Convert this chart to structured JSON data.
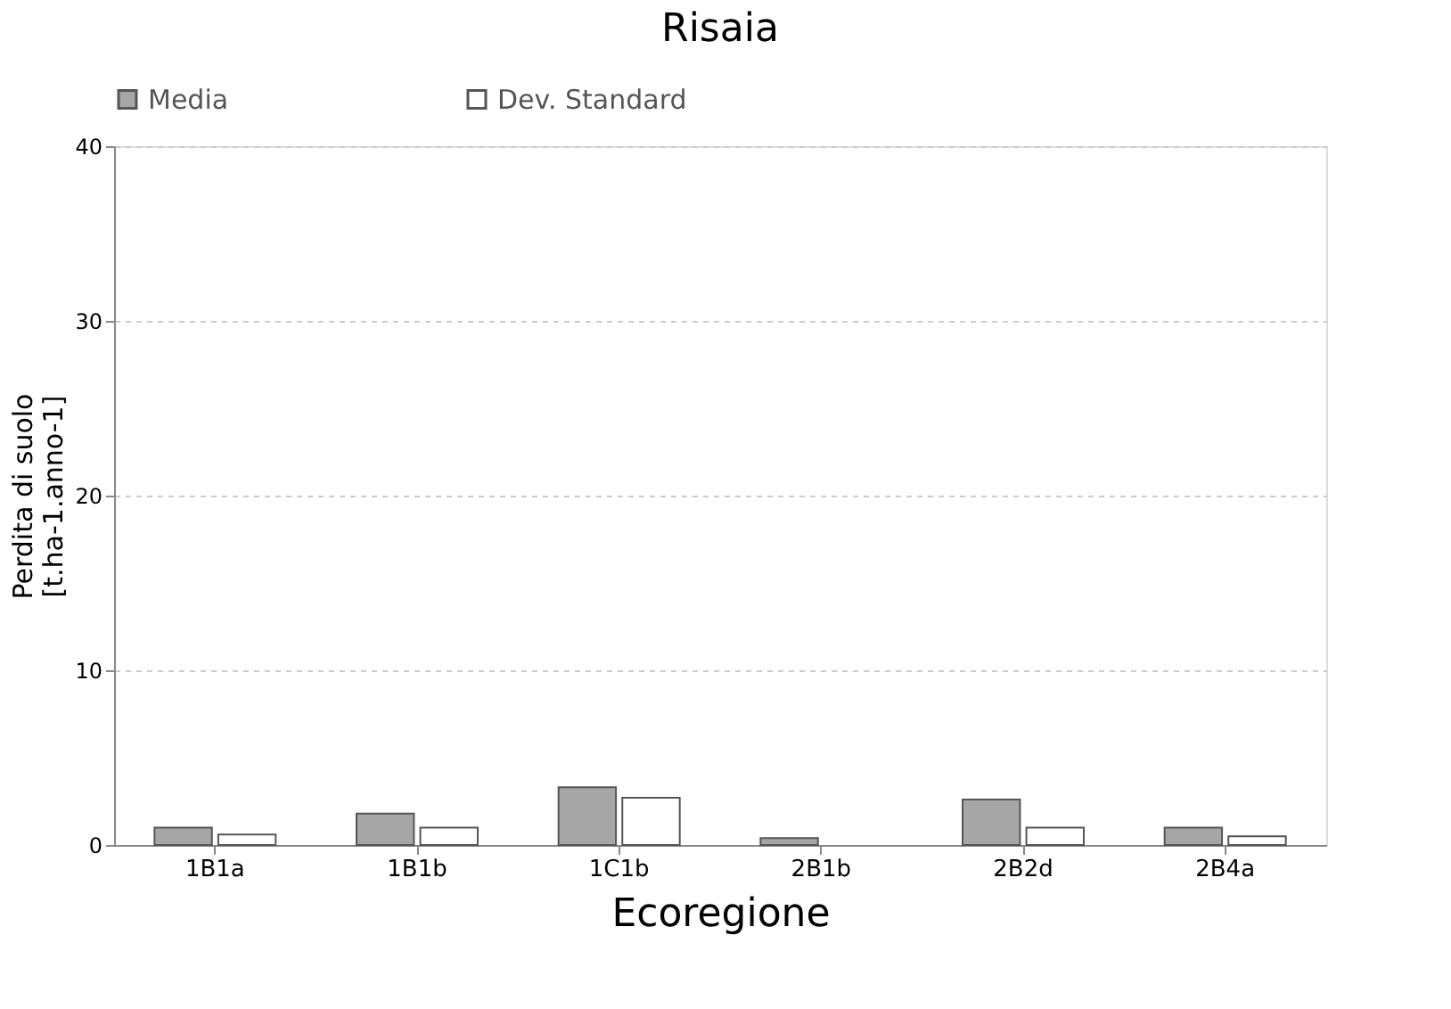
{
  "chart_data": {
    "type": "bar",
    "title": "Risaia",
    "xlabel": "Ecoregione",
    "ylabel": "Perdita di suolo\n[t.ha-1.anno-1]",
    "categories": [
      "1B1a",
      "1B1b",
      "1C1b",
      "2B1b",
      "2B2d",
      "2B4a"
    ],
    "series": [
      {
        "name": "Media",
        "color": "#a6a6a6",
        "values": [
          1.0,
          1.8,
          3.3,
          0.4,
          2.6,
          1.0
        ]
      },
      {
        "name": "Dev. Standard",
        "color": "#ffffff",
        "values": [
          0.6,
          1.0,
          2.7,
          null,
          1.0,
          0.5
        ]
      }
    ],
    "ylim": [
      0,
      40
    ],
    "yticks": [
      0,
      10,
      20,
      30,
      40
    ],
    "grid": "y",
    "legend": "top"
  }
}
